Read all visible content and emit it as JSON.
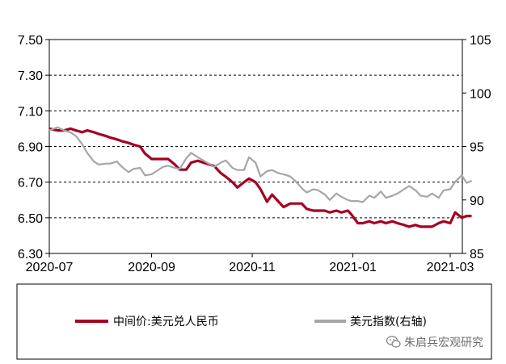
{
  "chart_data": {
    "type": "line",
    "left_axis": {
      "ylim": [
        6.3,
        7.5
      ],
      "ticks": [
        "7.50",
        "7.30",
        "7.10",
        "6.90",
        "6.70",
        "6.50",
        "6.30"
      ]
    },
    "right_axis": {
      "ylim": [
        85,
        105
      ],
      "ticks": [
        "105",
        "100",
        "95",
        "90",
        "85"
      ]
    },
    "x_axis": {
      "ticks": [
        "2020-07",
        "2020-09",
        "2020-11",
        "2021-01",
        "2021-03"
      ]
    },
    "grid": "horizontal-dashed",
    "series": [
      {
        "name": "中间价:美元兑人民币",
        "axis": "left",
        "color": "#a50021",
        "points": [
          [
            "2020-07-01",
            7.0
          ],
          [
            "2020-07-06",
            6.99
          ],
          [
            "2020-07-10",
            6.99
          ],
          [
            "2020-07-14",
            7.0
          ],
          [
            "2020-07-17",
            6.99
          ],
          [
            "2020-07-21",
            6.98
          ],
          [
            "2020-07-24",
            6.99
          ],
          [
            "2020-07-28",
            6.98
          ],
          [
            "2020-07-31",
            6.97
          ],
          [
            "2020-08-04",
            6.96
          ],
          [
            "2020-08-07",
            6.95
          ],
          [
            "2020-08-11",
            6.94
          ],
          [
            "2020-08-14",
            6.93
          ],
          [
            "2020-08-18",
            6.92
          ],
          [
            "2020-08-21",
            6.91
          ],
          [
            "2020-08-25",
            6.9
          ],
          [
            "2020-08-28",
            6.86
          ],
          [
            "2020-09-01",
            6.83
          ],
          [
            "2020-09-04",
            6.83
          ],
          [
            "2020-09-08",
            6.83
          ],
          [
            "2020-09-11",
            6.83
          ],
          [
            "2020-09-15",
            6.8
          ],
          [
            "2020-09-18",
            6.77
          ],
          [
            "2020-09-22",
            6.77
          ],
          [
            "2020-09-25",
            6.81
          ],
          [
            "2020-09-29",
            6.82
          ],
          [
            "2020-10-09",
            6.79
          ],
          [
            "2020-10-13",
            6.75
          ],
          [
            "2020-10-16",
            6.73
          ],
          [
            "2020-10-20",
            6.7
          ],
          [
            "2020-10-23",
            6.67
          ],
          [
            "2020-10-27",
            6.7
          ],
          [
            "2020-10-30",
            6.72
          ],
          [
            "2020-11-03",
            6.7
          ],
          [
            "2020-11-06",
            6.66
          ],
          [
            "2020-11-10",
            6.59
          ],
          [
            "2020-11-13",
            6.63
          ],
          [
            "2020-11-17",
            6.59
          ],
          [
            "2020-11-20",
            6.56
          ],
          [
            "2020-11-24",
            6.58
          ],
          [
            "2020-11-27",
            6.58
          ],
          [
            "2020-12-01",
            6.58
          ],
          [
            "2020-12-04",
            6.55
          ],
          [
            "2020-12-08",
            6.54
          ],
          [
            "2020-12-11",
            6.54
          ],
          [
            "2020-12-15",
            6.54
          ],
          [
            "2020-12-18",
            6.53
          ],
          [
            "2020-12-22",
            6.54
          ],
          [
            "2020-12-25",
            6.53
          ],
          [
            "2020-12-29",
            6.54
          ],
          [
            "2020-12-31",
            6.52
          ],
          [
            "2021-01-04",
            6.47
          ],
          [
            "2021-01-07",
            6.47
          ],
          [
            "2021-01-11",
            6.48
          ],
          [
            "2021-01-14",
            6.47
          ],
          [
            "2021-01-18",
            6.48
          ],
          [
            "2021-01-21",
            6.47
          ],
          [
            "2021-01-25",
            6.48
          ],
          [
            "2021-01-28",
            6.47
          ],
          [
            "2021-02-01",
            6.46
          ],
          [
            "2021-02-04",
            6.45
          ],
          [
            "2021-02-08",
            6.46
          ],
          [
            "2021-02-11",
            6.45
          ],
          [
            "2021-02-15",
            6.45
          ],
          [
            "2021-02-18",
            6.45
          ],
          [
            "2021-02-22",
            6.47
          ],
          [
            "2021-02-25",
            6.48
          ],
          [
            "2021-03-01",
            6.47
          ],
          [
            "2021-03-04",
            6.53
          ],
          [
            "2021-03-08",
            6.5
          ],
          [
            "2021-03-11",
            6.51
          ],
          [
            "2021-03-14",
            6.51
          ]
        ]
      },
      {
        "name": "美元指数(右轴)",
        "axis": "right",
        "color": "#a6a6a6",
        "points": [
          [
            "2020-07-01",
            96.5
          ],
          [
            "2020-07-06",
            96.8
          ],
          [
            "2020-07-10",
            96.5
          ],
          [
            "2020-07-14",
            96.3
          ],
          [
            "2020-07-17",
            96.0
          ],
          [
            "2020-07-21",
            95.2
          ],
          [
            "2020-07-24",
            94.4
          ],
          [
            "2020-07-28",
            93.6
          ],
          [
            "2020-07-31",
            93.3
          ],
          [
            "2020-08-04",
            93.4
          ],
          [
            "2020-08-07",
            93.4
          ],
          [
            "2020-08-11",
            93.6
          ],
          [
            "2020-08-14",
            93.1
          ],
          [
            "2020-08-18",
            92.6
          ],
          [
            "2020-08-21",
            92.9
          ],
          [
            "2020-08-25",
            93.0
          ],
          [
            "2020-08-28",
            92.3
          ],
          [
            "2020-09-01",
            92.4
          ],
          [
            "2020-09-04",
            92.7
          ],
          [
            "2020-09-08",
            93.1
          ],
          [
            "2020-09-11",
            93.2
          ],
          [
            "2020-09-15",
            93.0
          ],
          [
            "2020-09-18",
            92.9
          ],
          [
            "2020-09-22",
            93.9
          ],
          [
            "2020-09-25",
            94.4
          ],
          [
            "2020-09-29",
            94.0
          ],
          [
            "2020-10-09",
            93.1
          ],
          [
            "2020-10-13",
            93.5
          ],
          [
            "2020-10-16",
            93.7
          ],
          [
            "2020-10-20",
            93.0
          ],
          [
            "2020-10-23",
            92.8
          ],
          [
            "2020-10-27",
            92.8
          ],
          [
            "2020-10-30",
            94.0
          ],
          [
            "2020-11-03",
            93.5
          ],
          [
            "2020-11-06",
            92.2
          ],
          [
            "2020-11-10",
            92.7
          ],
          [
            "2020-11-13",
            92.8
          ],
          [
            "2020-11-17",
            92.5
          ],
          [
            "2020-11-20",
            92.4
          ],
          [
            "2020-11-24",
            92.2
          ],
          [
            "2020-11-27",
            91.8
          ],
          [
            "2020-12-01",
            91.1
          ],
          [
            "2020-12-04",
            90.7
          ],
          [
            "2020-12-08",
            91.0
          ],
          [
            "2020-12-11",
            90.9
          ],
          [
            "2020-12-15",
            90.5
          ],
          [
            "2020-12-18",
            90.0
          ],
          [
            "2020-12-22",
            90.6
          ],
          [
            "2020-12-25",
            90.3
          ],
          [
            "2020-12-29",
            90.0
          ],
          [
            "2020-12-31",
            89.9
          ],
          [
            "2021-01-04",
            89.9
          ],
          [
            "2021-01-07",
            89.8
          ],
          [
            "2021-01-11",
            90.4
          ],
          [
            "2021-01-14",
            90.2
          ],
          [
            "2021-01-18",
            90.8
          ],
          [
            "2021-01-21",
            90.2
          ],
          [
            "2021-01-25",
            90.4
          ],
          [
            "2021-01-28",
            90.6
          ],
          [
            "2021-02-01",
            91.0
          ],
          [
            "2021-02-04",
            91.3
          ],
          [
            "2021-02-08",
            90.9
          ],
          [
            "2021-02-11",
            90.4
          ],
          [
            "2021-02-15",
            90.3
          ],
          [
            "2021-02-18",
            90.6
          ],
          [
            "2021-02-22",
            90.2
          ],
          [
            "2021-02-25",
            90.9
          ],
          [
            "2021-03-01",
            91.0
          ],
          [
            "2021-03-04",
            91.7
          ],
          [
            "2021-03-08",
            92.3
          ],
          [
            "2021-03-11",
            91.6
          ],
          [
            "2021-03-14",
            91.8
          ]
        ]
      }
    ]
  },
  "legend": {
    "items": [
      {
        "label": "中间价:美元兑人民币",
        "color": "#a50021"
      },
      {
        "label": "美元指数(右轴)",
        "color": "#a6a6a6"
      }
    ]
  },
  "watermark": {
    "text": "朱启兵宏观研究",
    "icon": "wechat-icon"
  }
}
